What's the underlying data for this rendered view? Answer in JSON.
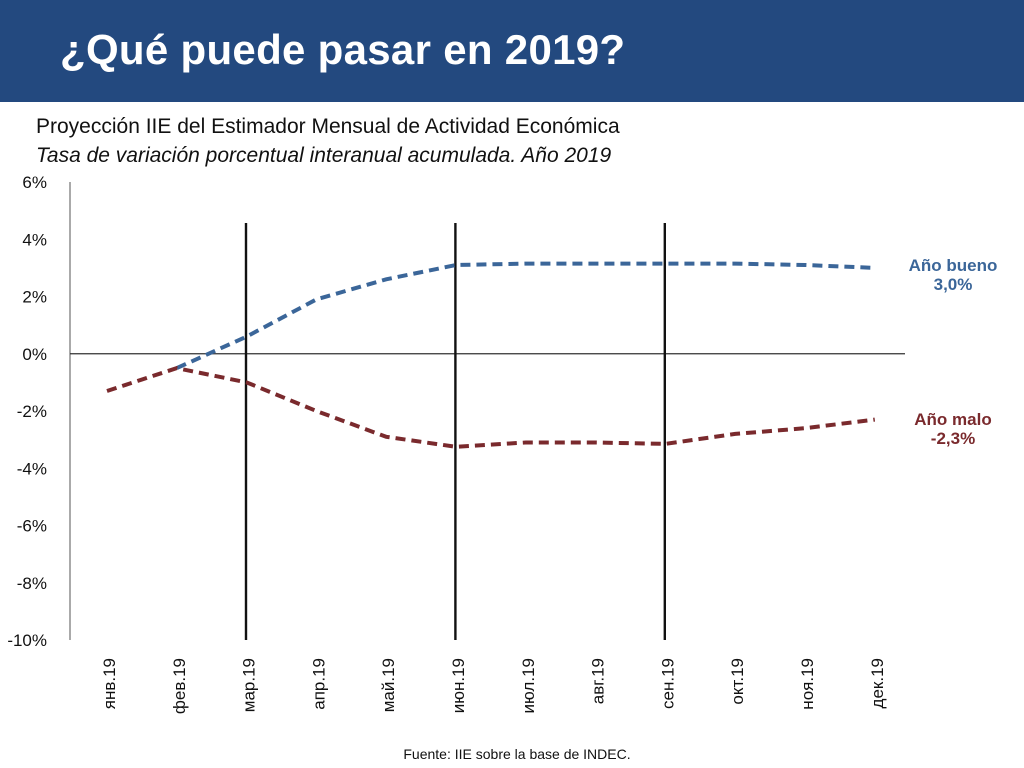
{
  "slide": {
    "title": "¿Qué puede pasar en 2019?",
    "source": "Fuente: IIE sobre la base de INDEC."
  },
  "colors": {
    "header": "#23497f",
    "good": "#3b6699",
    "bad": "#7a2a2d"
  },
  "chart_data": {
    "type": "line",
    "title": "Proyección IIE del Estimador Mensual de Actividad Económica",
    "subtitle": "Tasa de variación porcentual interanual acumulada. Año 2019",
    "categories": [
      "янв.19",
      "фев.19",
      "мар.19",
      "апр.19",
      "май.19",
      "июн.19",
      "июл.19",
      "авг.19",
      "сен.19",
      "окт.19",
      "ноя.19",
      "дек.19"
    ],
    "ylim": [
      -10,
      6
    ],
    "yticks": [
      "6%",
      "4%",
      "2%",
      "0%",
      "-2%",
      "-4%",
      "-6%",
      "-8%",
      "-10%"
    ],
    "ytick_values": [
      6,
      4,
      2,
      0,
      -2,
      -4,
      -6,
      -8,
      -10
    ],
    "vertical_markers": [
      "мар.19",
      "июн.19",
      "сен.19"
    ],
    "line_style": "dashed",
    "series": [
      {
        "key": "good",
        "label_line1": "Año bueno",
        "label_line2": "3,0%",
        "values": [
          null,
          -0.5,
          0.6,
          1.9,
          2.6,
          3.1,
          3.15,
          3.15,
          3.15,
          3.15,
          3.1,
          3.0
        ]
      },
      {
        "key": "bad",
        "label_line1": "Año malo",
        "label_line2": "-2,3%",
        "values": [
          -1.3,
          -0.5,
          -1.0,
          -2.0,
          -2.9,
          -3.25,
          -3.1,
          -3.1,
          -3.15,
          -2.8,
          -2.6,
          -2.3
        ]
      }
    ]
  }
}
